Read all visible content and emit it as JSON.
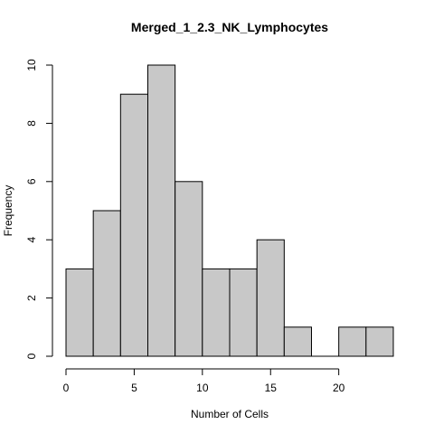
{
  "chart_data": {
    "type": "bar",
    "title": "Merged_1_2.3_NK_Lymphocytes",
    "xlabel": "Number of Cells",
    "ylabel": "Frequency",
    "bin_edges": [
      0,
      2,
      4,
      6,
      8,
      10,
      12,
      14,
      16,
      18,
      20,
      22,
      24
    ],
    "values": [
      3,
      5,
      9,
      10,
      6,
      3,
      3,
      4,
      1,
      0,
      1,
      1
    ],
    "xlim": [
      0,
      24
    ],
    "ylim": [
      0,
      10
    ],
    "x_ticks": [
      0,
      5,
      10,
      15,
      20
    ],
    "y_ticks": [
      0,
      2,
      4,
      6,
      8,
      10
    ],
    "colors": {
      "bar_fill": "#c8c8c8",
      "bar_stroke": "#000000"
    },
    "grid": false
  }
}
